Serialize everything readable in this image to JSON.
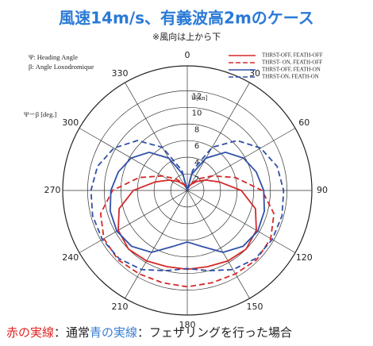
{
  "chart_data": {
    "type": "polar-line",
    "title": "風速14m/s、有義波高2mのケース",
    "subtitle": "※風向は上から下",
    "annotations": [
      "Ψ: Heading Angle",
      "β: Angle Loxodromique",
      "Ψ－β [deg.]",
      "U[kn]"
    ],
    "footer": [
      "赤の実線",
      "：通常",
      "青の実線",
      "：フェザリングを行った場合"
    ],
    "footer_colors": [
      "#e02424",
      "#222222",
      "#3a7fd0",
      "#222222"
    ],
    "theta": [
      0,
      15,
      30,
      45,
      60,
      75,
      90,
      105,
      120,
      135,
      150,
      165,
      180,
      195,
      210,
      225,
      240,
      255,
      270,
      285,
      300,
      315,
      330,
      345,
      360
    ],
    "rlim": [
      0,
      15
    ],
    "rticks": [
      2,
      4,
      6,
      8,
      10,
      12
    ],
    "thetaticks": [
      0,
      30,
      60,
      90,
      120,
      150,
      180,
      210,
      240,
      270,
      300,
      330
    ],
    "grid": true,
    "legend": "upper right",
    "series": [
      {
        "name": "THRST-OFF, FEATH-OFF",
        "color": "#d62828",
        "dash": false,
        "values": [
          0,
          0.3,
          0.8,
          1.5,
          2.5,
          4,
          6.5,
          8.5,
          9.6,
          10,
          9.8,
          9.5,
          9.5,
          9.5,
          9.8,
          10,
          9.6,
          8.5,
          6.5,
          4,
          2.5,
          1.5,
          0.8,
          0.3,
          0
        ]
      },
      {
        "name": "THRST- ON, FEATH-OFF",
        "color": "#d62828",
        "dash": true,
        "values": [
          0,
          0.4,
          1,
          2,
          3.5,
          6,
          9,
          10.8,
          11.6,
          11.8,
          11.6,
          11.5,
          11.6,
          11.5,
          11.6,
          11.8,
          11.6,
          10.8,
          9,
          6,
          3.5,
          2,
          1,
          0.4,
          0
        ]
      },
      {
        "name": "THRST-OFF, FEATH-ON",
        "color": "#3050a8",
        "dash": false,
        "values": [
          0,
          2,
          4.5,
          6.5,
          7.8,
          8.6,
          9.2,
          9.6,
          9.8,
          9.5,
          8.6,
          7,
          6.2,
          7,
          8.6,
          9.5,
          9.8,
          9.6,
          9.2,
          8.6,
          7.8,
          6.5,
          4.5,
          2,
          0
        ]
      },
      {
        "name": "THRST-ON, FEATH-ON",
        "color": "#3050a8",
        "dash": true,
        "values": [
          0,
          2.5,
          6,
          8.5,
          10.2,
          11.2,
          11.6,
          11.8,
          11.8,
          11.6,
          11,
          10,
          9.4,
          10,
          11,
          11.6,
          11.8,
          11.8,
          11.6,
          11.2,
          10.2,
          8.5,
          6,
          2.5,
          0
        ]
      }
    ]
  }
}
